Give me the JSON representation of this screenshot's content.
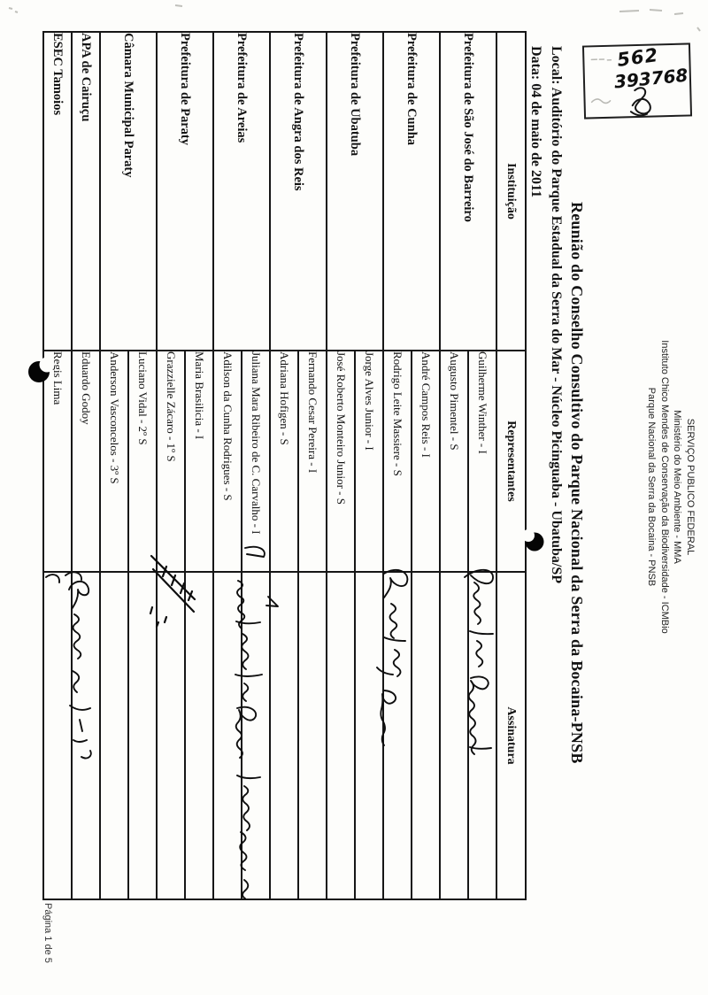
{
  "agency_header": {
    "lines": [
      "SERVIÇO PUBLICO FEDERAL",
      "Ministério do Meio Ambiente - MMA",
      "Instituto Chico Mendes de Conservação da Biodiversidade - ICMBio",
      "Parque Nacional da Serra da Bocaina - PNSB"
    ]
  },
  "document": {
    "title": "Reunião do Conselho Consultivo do Parque Nacional da Serra da Bocaina-PNSB",
    "location_line": "Local: Auditório do Parque Estadual da Serra do Mar - Núcleo Picinguaba - Ubatuba/SP",
    "date_line": "Data: 04 de maio de 2011",
    "footer": "Página 1 de 5",
    "orientation": "scanned page rotated 90 degrees clockwise"
  },
  "stamp": {
    "number_top": "562",
    "number_bottom": "393768"
  },
  "attendance_table": {
    "columns": [
      "Instituição",
      "Representantes",
      "Assinatura"
    ],
    "rows": [
      {
        "institution": "Prefeitura de São José do Barreiro",
        "representatives": [
          "Guilherme Winther - I",
          "Augusto Pimentel - S"
        ],
        "signatures": [
          "handwritten signature",
          ""
        ]
      },
      {
        "institution": "Prefeitura de Cunha",
        "representatives": [
          "André Campos Reis - I",
          "Rodrigo Leite Massiere - S"
        ],
        "signatures": [
          "",
          "handwritten signature"
        ]
      },
      {
        "institution": "Prefeitura de Ubatuba",
        "representatives": [
          "Jorge Alves Junior - I",
          "José Roberto Monteiro Junior - S"
        ],
        "signatures": [
          "",
          ""
        ]
      },
      {
        "institution": "Prefeitura de Angra dos Reis",
        "representatives": [
          "Fernando Cesar Pereira - I",
          "Adriana Hofigen - S"
        ],
        "signatures": [
          "",
          "small pen mark"
        ]
      },
      {
        "institution": "Prefeitura de Areias",
        "representatives": [
          "Juliana Mara Ribeiro de C. Carvalho - I",
          "Adilson da Cunha Rodrigues - S"
        ],
        "signatures": [
          "handwritten signature",
          ""
        ]
      },
      {
        "institution": "Prefeitura de Paraty",
        "representatives": [
          "Maria Brasilicia - I",
          "Grazzielle Zácaro - 1º S"
        ],
        "signatures": [
          "diagonal pen strokes",
          "diagonal pen strokes"
        ]
      },
      {
        "institution": "Câmara Municipal Paraty",
        "representatives": [
          "Luciano Vidal - 2º S",
          "Anderson Vasconcelos - 3º S"
        ],
        "signatures": [
          "",
          ""
        ]
      },
      {
        "institution": "APA de Cairuçu",
        "representatives": [
          "Eduardo Godoy"
        ],
        "signatures": [
          "handwritten signature"
        ]
      },
      {
        "institution": "ESEC Tamoios",
        "representatives": [
          "Regis Lima"
        ],
        "signatures": [
          "small pen mark"
        ]
      }
    ]
  }
}
